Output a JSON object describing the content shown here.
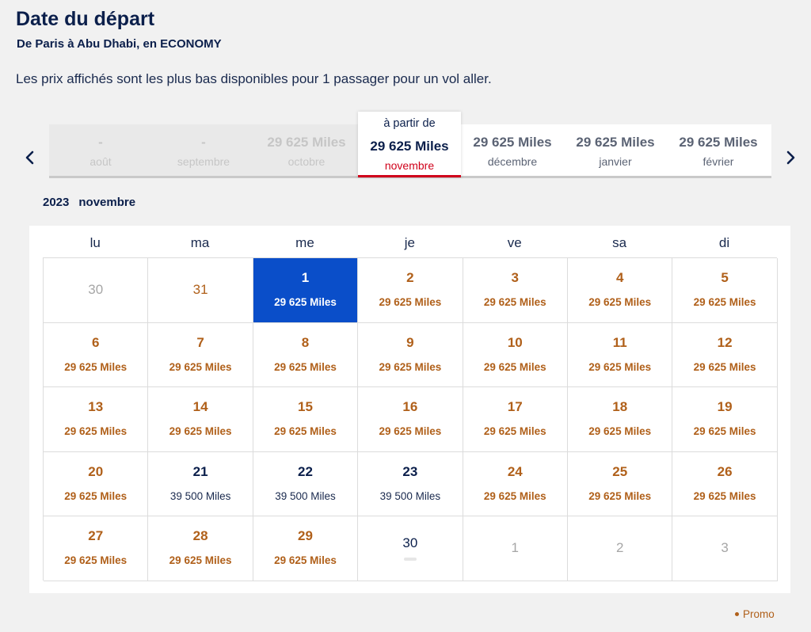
{
  "header": {
    "title": "Date du départ",
    "subtitle": "De Paris à Abu Dhabi, en ECONOMY",
    "notice": "Les prix affichés sont les plus bas disponibles pour 1 passager pour un vol aller."
  },
  "months": [
    {
      "price": "-",
      "name": "août",
      "state": "disabled"
    },
    {
      "price": "-",
      "name": "septembre",
      "state": "disabled"
    },
    {
      "price": "29 625  Miles",
      "name": "octobre",
      "state": "disabled"
    },
    {
      "from": "à partir de",
      "price": "29 625  Miles",
      "name": "novembre",
      "state": "selected"
    },
    {
      "price": "29 625  Miles",
      "name": "décembre",
      "state": "enabled"
    },
    {
      "price": "29 625  Miles",
      "name": "janvier",
      "state": "enabled"
    },
    {
      "price": "29 625  Miles",
      "name": "février",
      "state": "enabled"
    }
  ],
  "calendar": {
    "year": "2023",
    "month": "novembre",
    "weekdays": [
      "lu",
      "ma",
      "me",
      "je",
      "ve",
      "sa",
      "di"
    ],
    "weeks": [
      [
        {
          "day": "30",
          "miles": "",
          "type": "other"
        },
        {
          "day": "31",
          "miles": "",
          "type": "other oct31"
        },
        {
          "day": "1",
          "miles": "29 625  Miles",
          "type": "selected"
        },
        {
          "day": "2",
          "miles": "29 625  Miles",
          "type": "promo"
        },
        {
          "day": "3",
          "miles": "29 625  Miles",
          "type": "promo"
        },
        {
          "day": "4",
          "miles": "29 625  Miles",
          "type": "promo"
        },
        {
          "day": "5",
          "miles": "29 625  Miles",
          "type": "promo"
        }
      ],
      [
        {
          "day": "6",
          "miles": "29 625  Miles",
          "type": "promo"
        },
        {
          "day": "7",
          "miles": "29 625  Miles",
          "type": "promo"
        },
        {
          "day": "8",
          "miles": "29 625  Miles",
          "type": "promo"
        },
        {
          "day": "9",
          "miles": "29 625  Miles",
          "type": "promo"
        },
        {
          "day": "10",
          "miles": "29 625  Miles",
          "type": "promo"
        },
        {
          "day": "11",
          "miles": "29 625  Miles",
          "type": "promo"
        },
        {
          "day": "12",
          "miles": "29 625  Miles",
          "type": "promo"
        }
      ],
      [
        {
          "day": "13",
          "miles": "29 625  Miles",
          "type": "promo"
        },
        {
          "day": "14",
          "miles": "29 625  Miles",
          "type": "promo"
        },
        {
          "day": "15",
          "miles": "29 625  Miles",
          "type": "promo"
        },
        {
          "day": "16",
          "miles": "29 625  Miles",
          "type": "promo"
        },
        {
          "day": "17",
          "miles": "29 625  Miles",
          "type": "promo"
        },
        {
          "day": "18",
          "miles": "29 625  Miles",
          "type": "promo"
        },
        {
          "day": "19",
          "miles": "29 625  Miles",
          "type": "promo"
        }
      ],
      [
        {
          "day": "20",
          "miles": "29 625  Miles",
          "type": "promo"
        },
        {
          "day": "21",
          "miles": "39 500  Miles",
          "type": "high"
        },
        {
          "day": "22",
          "miles": "39 500  Miles",
          "type": "high"
        },
        {
          "day": "23",
          "miles": "39 500  Miles",
          "type": "high"
        },
        {
          "day": "24",
          "miles": "29 625  Miles",
          "type": "promo"
        },
        {
          "day": "25",
          "miles": "29 625  Miles",
          "type": "promo"
        },
        {
          "day": "26",
          "miles": "29 625  Miles",
          "type": "promo"
        }
      ],
      [
        {
          "day": "27",
          "miles": "29 625  Miles",
          "type": "promo"
        },
        {
          "day": "28",
          "miles": "29 625  Miles",
          "type": "promo"
        },
        {
          "day": "29",
          "miles": "29 625  Miles",
          "type": "promo"
        },
        {
          "day": "30",
          "miles": "",
          "type": "na"
        },
        {
          "day": "1",
          "miles": "",
          "type": "other"
        },
        {
          "day": "2",
          "miles": "",
          "type": "other"
        },
        {
          "day": "3",
          "miles": "",
          "type": "other"
        }
      ]
    ]
  },
  "legend": {
    "label": "Promo"
  },
  "colors": {
    "promo": "#b0601a",
    "selected": "#0a4ec9",
    "accent_red": "#d0021b",
    "navy": "#0b1f4b"
  },
  "icons": {
    "prev": "chevron-left-icon",
    "next": "chevron-right-icon"
  }
}
